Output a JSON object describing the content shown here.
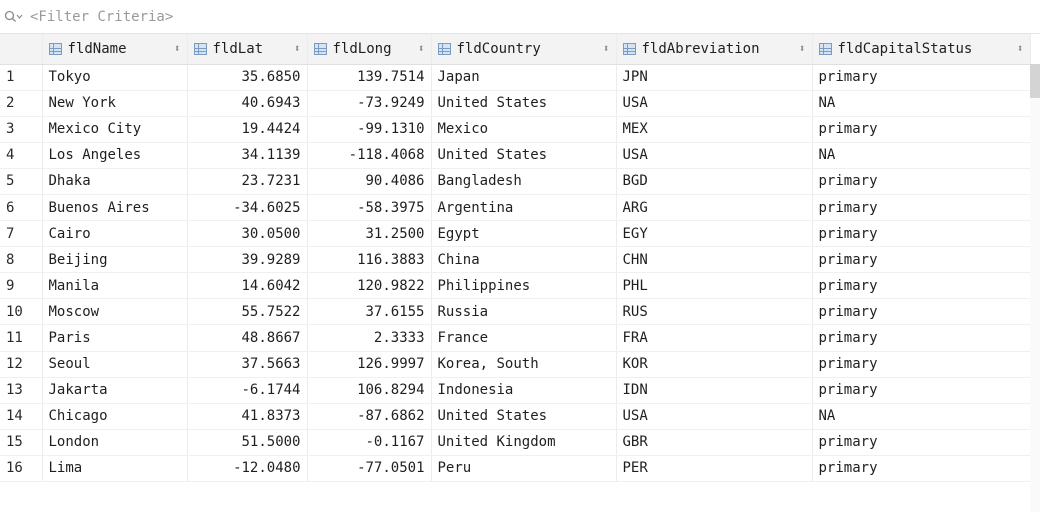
{
  "filter": {
    "placeholder": "<Filter Criteria>"
  },
  "columns": [
    {
      "label": "fldName"
    },
    {
      "label": "fldLat"
    },
    {
      "label": "fldLong"
    },
    {
      "label": "fldCountry"
    },
    {
      "label": "fldAbreviation"
    },
    {
      "label": "fldCapitalStatus"
    }
  ],
  "rows": [
    {
      "n": "1",
      "name": "Tokyo",
      "lat": "35.6850",
      "long": "139.7514",
      "country": "Japan",
      "abbr": "JPN",
      "status": "primary"
    },
    {
      "n": "2",
      "name": "New York",
      "lat": "40.6943",
      "long": "-73.9249",
      "country": "United States",
      "abbr": "USA",
      "status": "NA"
    },
    {
      "n": "3",
      "name": "Mexico City",
      "lat": "19.4424",
      "long": "-99.1310",
      "country": "Mexico",
      "abbr": "MEX",
      "status": "primary"
    },
    {
      "n": "4",
      "name": "Los Angeles",
      "lat": "34.1139",
      "long": "-118.4068",
      "country": "United States",
      "abbr": "USA",
      "status": "NA"
    },
    {
      "n": "5",
      "name": "Dhaka",
      "lat": "23.7231",
      "long": "90.4086",
      "country": "Bangladesh",
      "abbr": "BGD",
      "status": "primary"
    },
    {
      "n": "6",
      "name": "Buenos Aires",
      "lat": "-34.6025",
      "long": "-58.3975",
      "country": "Argentina",
      "abbr": "ARG",
      "status": "primary"
    },
    {
      "n": "7",
      "name": "Cairo",
      "lat": "30.0500",
      "long": "31.2500",
      "country": "Egypt",
      "abbr": "EGY",
      "status": "primary"
    },
    {
      "n": "8",
      "name": "Beijing",
      "lat": "39.9289",
      "long": "116.3883",
      "country": "China",
      "abbr": "CHN",
      "status": "primary"
    },
    {
      "n": "9",
      "name": "Manila",
      "lat": "14.6042",
      "long": "120.9822",
      "country": "Philippines",
      "abbr": "PHL",
      "status": "primary"
    },
    {
      "n": "10",
      "name": "Moscow",
      "lat": "55.7522",
      "long": "37.6155",
      "country": "Russia",
      "abbr": "RUS",
      "status": "primary"
    },
    {
      "n": "11",
      "name": "Paris",
      "lat": "48.8667",
      "long": "2.3333",
      "country": "France",
      "abbr": "FRA",
      "status": "primary"
    },
    {
      "n": "12",
      "name": "Seoul",
      "lat": "37.5663",
      "long": "126.9997",
      "country": "Korea, South",
      "abbr": "KOR",
      "status": "primary"
    },
    {
      "n": "13",
      "name": "Jakarta",
      "lat": "-6.1744",
      "long": "106.8294",
      "country": "Indonesia",
      "abbr": "IDN",
      "status": "primary"
    },
    {
      "n": "14",
      "name": "Chicago",
      "lat": "41.8373",
      "long": "-87.6862",
      "country": "United States",
      "abbr": "USA",
      "status": "NA"
    },
    {
      "n": "15",
      "name": "London",
      "lat": "51.5000",
      "long": "-0.1167",
      "country": "United Kingdom",
      "abbr": "GBR",
      "status": "primary"
    },
    {
      "n": "16",
      "name": "Lima",
      "lat": "-12.0480",
      "long": "-77.0501",
      "country": "Peru",
      "abbr": "PER",
      "status": "primary"
    }
  ]
}
